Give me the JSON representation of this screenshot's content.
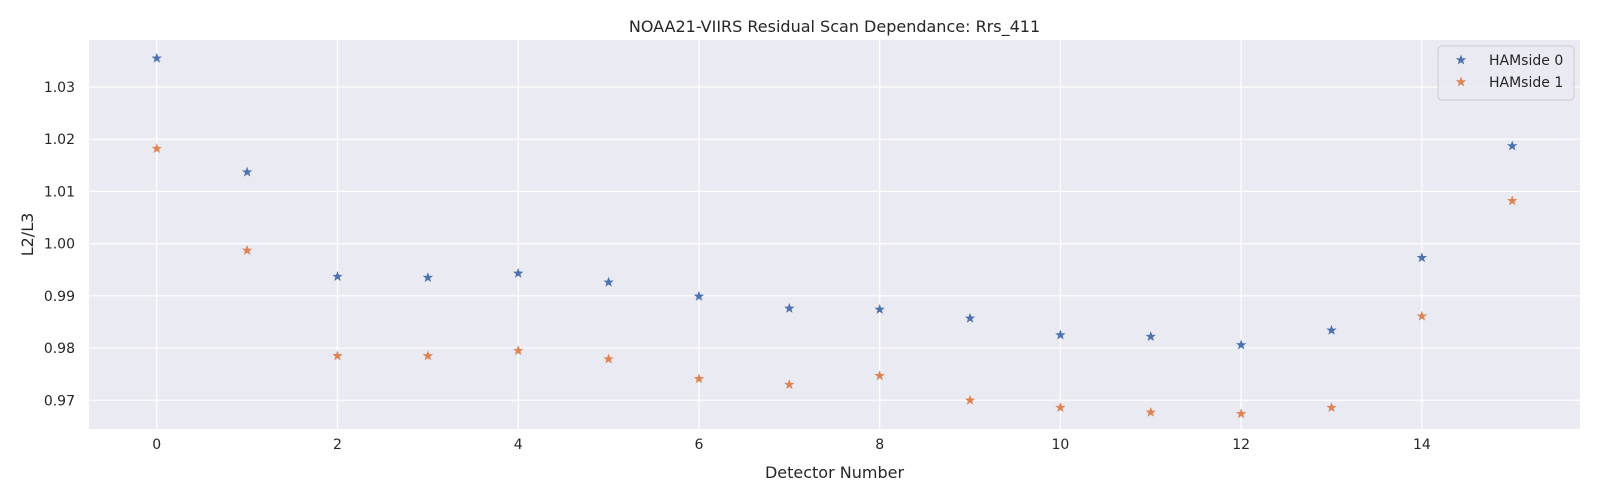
{
  "chart_data": {
    "type": "scatter",
    "title": "NOAA21-VIIRS Residual Scan Dependance: Rrs_411",
    "xlabel": "Detector Number",
    "ylabel": "L2/L3",
    "xlim": [
      -0.75,
      15.75
    ],
    "ylim": [
      0.9645,
      1.039
    ],
    "xticks": [
      0,
      2,
      4,
      6,
      8,
      10,
      12,
      14
    ],
    "yticks": [
      0.97,
      0.98,
      0.99,
      1.0,
      1.01,
      1.02,
      1.03
    ],
    "ytick_labels": [
      "0.97",
      "0.98",
      "0.99",
      "1.00",
      "1.01",
      "1.02",
      "1.03"
    ],
    "grid": true,
    "background": "#eaeaf2",
    "legend_position": "upper right",
    "marker": "star",
    "x": [
      0,
      1,
      2,
      3,
      4,
      5,
      6,
      7,
      8,
      9,
      10,
      11,
      12,
      13,
      14,
      15
    ],
    "series": [
      {
        "name": "HAMside 0",
        "color": "#4c72b0",
        "values": [
          1.0355,
          1.0137,
          0.9937,
          0.9935,
          0.9943,
          0.9926,
          0.9899,
          0.9876,
          0.9874,
          0.9857,
          0.9825,
          0.9822,
          0.9806,
          0.9834,
          0.9973,
          1.0187
        ]
      },
      {
        "name": "HAMside 1",
        "color": "#dd8452",
        "values": [
          1.0182,
          0.9987,
          0.9785,
          0.9785,
          0.9795,
          0.9779,
          0.9741,
          0.973,
          0.9747,
          0.97,
          0.9686,
          0.9677,
          0.9674,
          0.9686,
          0.9861,
          1.0082
        ]
      }
    ]
  }
}
